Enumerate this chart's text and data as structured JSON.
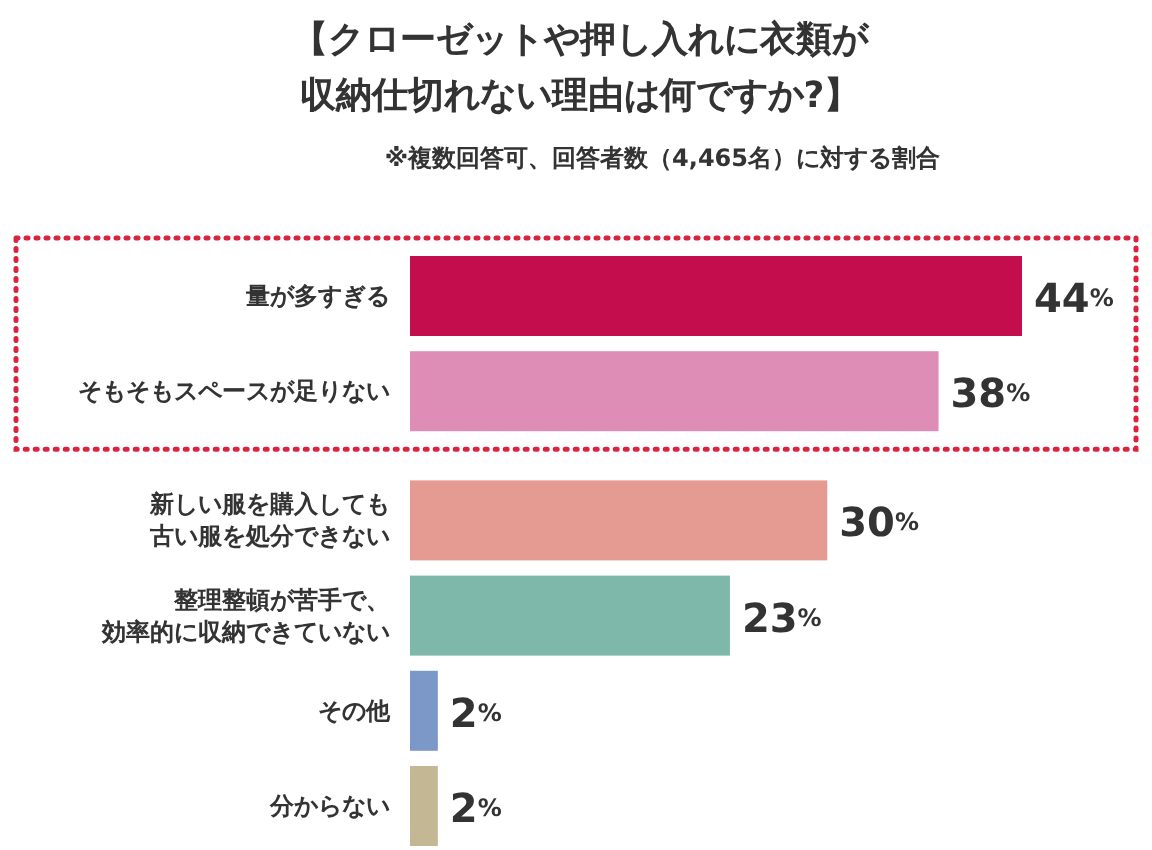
{
  "chart_data": {
    "type": "bar",
    "orientation": "horizontal",
    "title": "【クローゼットや押し入れに衣類が収納仕切れない理由は何ですか?】",
    "subtitle": "※複数回答可、回答者数（4,465名）に対する割合",
    "categories": [
      "量が多すぎる",
      "そもそもスペースが足りない",
      "新しい服を購入しても古い服を処分できない",
      "整理整頓が苦手で、効率的に収納できていない",
      "その他",
      "分からない"
    ],
    "values": [
      44,
      38,
      30,
      23,
      2,
      2
    ],
    "value_labels": [
      "44%",
      "38%",
      "30%",
      "23%",
      "2%",
      "2%"
    ],
    "colors": [
      "#c30d4d",
      "#de8db7",
      "#e59b92",
      "#7db8ab",
      "#7b98c9",
      "#c4b793"
    ]
  }
}
